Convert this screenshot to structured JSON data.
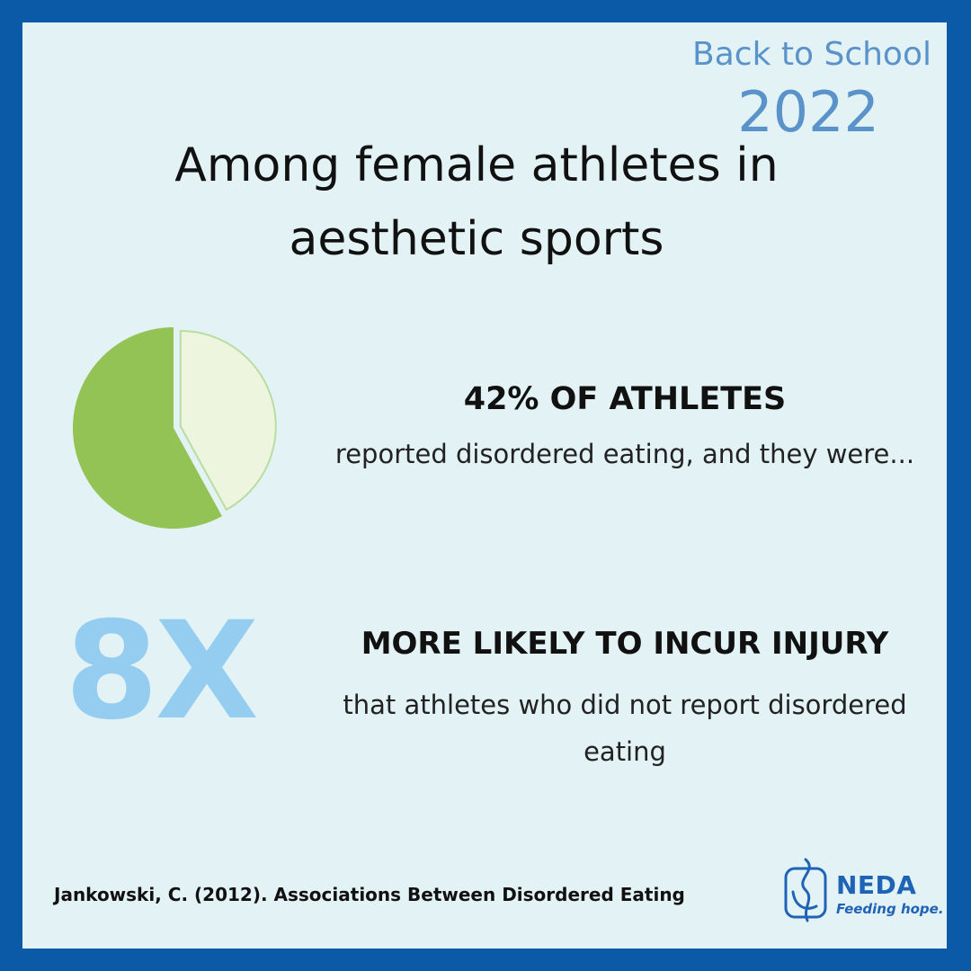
{
  "campaign": {
    "title": "Back to School",
    "year": "2022"
  },
  "headline": {
    "line1": "Among female athletes in",
    "line2": "aesthetic sports"
  },
  "stat_disordered_eating": {
    "percent": 42,
    "heading": "42% OF ATHLETES",
    "caption": "reported disordered eating, and they were..."
  },
  "stat_injury": {
    "multiplier": "8X",
    "heading": "MORE LIKELY TO INCUR INJURY",
    "caption_line1": "that athletes who did not report disordered",
    "caption_line2": "eating"
  },
  "citation": "Jankowski, C. (2012). Associations Between Disordered Eating",
  "logo": {
    "name": "NEDA",
    "tagline": "Feeding hope."
  },
  "colors": {
    "frame": "#0a5aa8",
    "panel": "#e3f2f4",
    "pie_major": "#93c354",
    "pie_minor": "#eef5df",
    "multiplier": "#95cdf0",
    "brand": "#1f63b6"
  }
}
